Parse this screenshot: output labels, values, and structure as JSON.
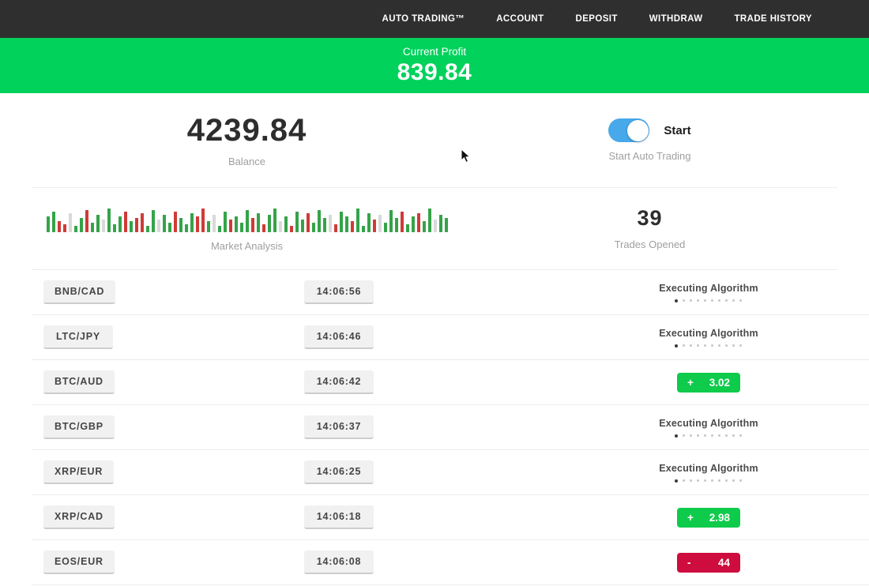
{
  "nav": {
    "items": [
      "AUTO TRADING™",
      "ACCOUNT",
      "DEPOSIT",
      "WITHDRAW",
      "TRADE HISTORY"
    ]
  },
  "profit_banner": {
    "label": "Current Profit",
    "value": "839.84"
  },
  "account": {
    "balance": "4239.84",
    "balance_label": "Balance",
    "toggle_label": "Start",
    "toggle_caption": "Start Auto Trading",
    "toggle_on": true
  },
  "market": {
    "label": "Market Analysis",
    "trades_opened": "39",
    "trades_opened_label": "Trades Opened",
    "bars": [
      [
        20,
        "g"
      ],
      [
        26,
        "g"
      ],
      [
        14,
        "r"
      ],
      [
        10,
        "r"
      ],
      [
        24,
        "n"
      ],
      [
        8,
        "g"
      ],
      [
        18,
        "g"
      ],
      [
        28,
        "r"
      ],
      [
        12,
        "g"
      ],
      [
        22,
        "g"
      ],
      [
        16,
        "n"
      ],
      [
        30,
        "g"
      ],
      [
        10,
        "g"
      ],
      [
        20,
        "g"
      ],
      [
        26,
        "r"
      ],
      [
        14,
        "g"
      ],
      [
        18,
        "r"
      ],
      [
        24,
        "r"
      ],
      [
        8,
        "g"
      ],
      [
        28,
        "g"
      ],
      [
        16,
        "n"
      ],
      [
        22,
        "g"
      ],
      [
        12,
        "g"
      ],
      [
        26,
        "r"
      ],
      [
        18,
        "g"
      ],
      [
        10,
        "g"
      ],
      [
        24,
        "g"
      ],
      [
        20,
        "r"
      ],
      [
        30,
        "r"
      ],
      [
        14,
        "g"
      ],
      [
        22,
        "n"
      ],
      [
        8,
        "g"
      ],
      [
        26,
        "g"
      ],
      [
        16,
        "r"
      ],
      [
        20,
        "g"
      ],
      [
        12,
        "g"
      ],
      [
        28,
        "g"
      ],
      [
        18,
        "r"
      ],
      [
        24,
        "g"
      ],
      [
        10,
        "r"
      ],
      [
        22,
        "g"
      ],
      [
        30,
        "g"
      ],
      [
        14,
        "n"
      ],
      [
        20,
        "g"
      ],
      [
        8,
        "r"
      ],
      [
        26,
        "g"
      ],
      [
        16,
        "g"
      ],
      [
        24,
        "r"
      ],
      [
        12,
        "g"
      ],
      [
        28,
        "g"
      ],
      [
        18,
        "g"
      ],
      [
        22,
        "n"
      ],
      [
        10,
        "r"
      ],
      [
        26,
        "g"
      ],
      [
        20,
        "g"
      ],
      [
        14,
        "r"
      ],
      [
        30,
        "g"
      ],
      [
        8,
        "g"
      ],
      [
        24,
        "g"
      ],
      [
        16,
        "r"
      ],
      [
        22,
        "n"
      ],
      [
        12,
        "g"
      ],
      [
        28,
        "g"
      ],
      [
        18,
        "g"
      ],
      [
        26,
        "r"
      ],
      [
        10,
        "g"
      ],
      [
        20,
        "g"
      ],
      [
        24,
        "r"
      ],
      [
        14,
        "g"
      ],
      [
        30,
        "g"
      ],
      [
        16,
        "n"
      ],
      [
        22,
        "g"
      ],
      [
        18,
        "g"
      ]
    ]
  },
  "trades": {
    "executing_label": "Executing Algorithm",
    "loader_dots": 10,
    "rows": [
      {
        "pair": "BNB/CAD",
        "time": "14:06:56",
        "status": "executing"
      },
      {
        "pair": "LTC/JPY",
        "time": "14:06:46",
        "status": "executing"
      },
      {
        "pair": "BTC/AUD",
        "time": "14:06:42",
        "status": "result",
        "sign": "+",
        "value": "3.02",
        "kind": "profit"
      },
      {
        "pair": "BTC/GBP",
        "time": "14:06:37",
        "status": "executing"
      },
      {
        "pair": "XRP/EUR",
        "time": "14:06:25",
        "status": "executing"
      },
      {
        "pair": "XRP/CAD",
        "time": "14:06:18",
        "status": "result",
        "sign": "+",
        "value": "2.98",
        "kind": "profit"
      },
      {
        "pair": "EOS/EUR",
        "time": "14:06:08",
        "status": "result",
        "sign": "-",
        "value": "44",
        "kind": "loss"
      }
    ]
  },
  "colors": {
    "nav_bg": "#2f2f2f",
    "accent_green": "#00d25c",
    "toggle_blue": "#47a8ea",
    "badge_green": "#0ecb4b",
    "badge_red": "#ce0c3d"
  }
}
